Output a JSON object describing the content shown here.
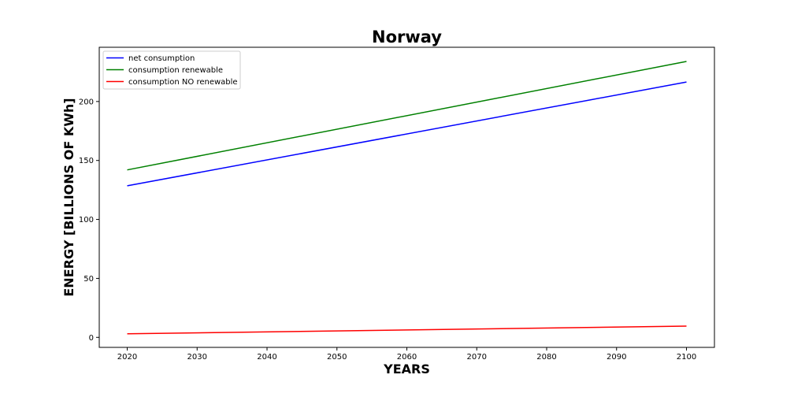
{
  "chart_data": {
    "type": "line",
    "title": "Norway",
    "xlabel": "YEARS",
    "ylabel": "ENERGY [BILLIONS OF KWh]",
    "x": [
      2020,
      2100
    ],
    "xlim": [
      2016,
      2104
    ],
    "ylim": [
      -8.5,
      246
    ],
    "xticks": [
      2020,
      2030,
      2040,
      2050,
      2060,
      2070,
      2080,
      2090,
      2100
    ],
    "yticks": [
      0,
      50,
      100,
      150,
      200
    ],
    "grid": false,
    "legend_position": "top-left",
    "series": [
      {
        "name": "net consumption",
        "color": "#0000ff",
        "values": [
          128.5,
          216.5
        ]
      },
      {
        "name": "consumption renewable",
        "color": "#008000",
        "values": [
          142,
          234
        ]
      },
      {
        "name": "consumption NO renewable",
        "color": "#ff0000",
        "values": [
          3,
          9.5
        ]
      }
    ]
  }
}
